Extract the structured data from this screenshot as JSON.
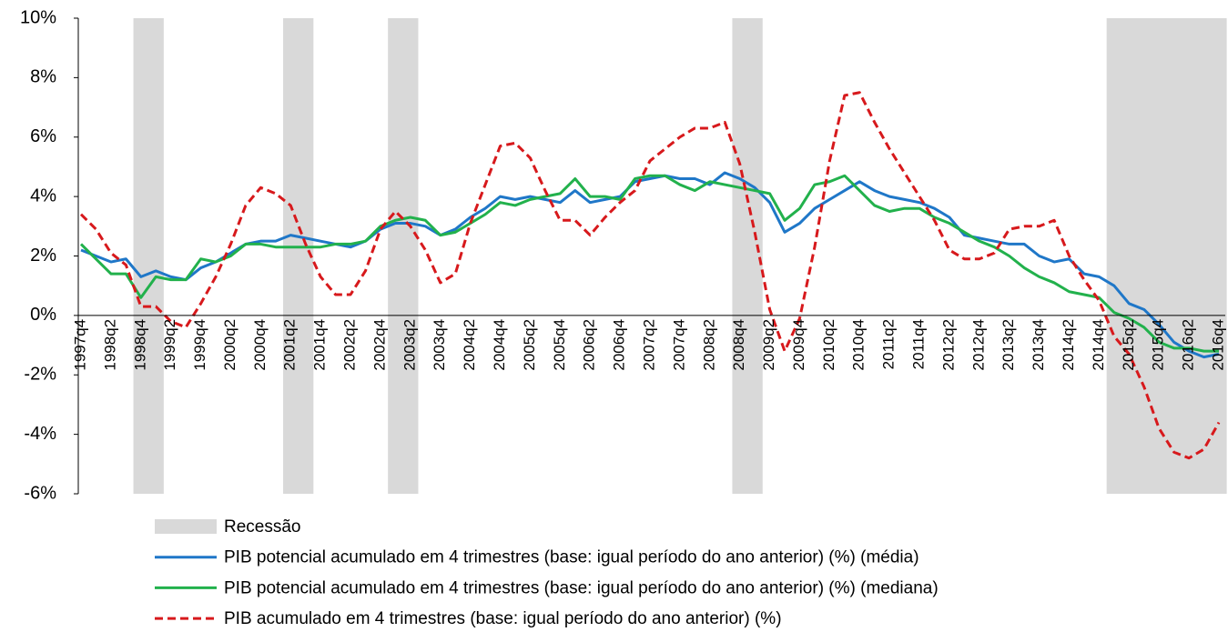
{
  "chart_data": {
    "type": "line",
    "categories": [
      "1997q4",
      null,
      "1998q2",
      null,
      "1998q4",
      null,
      "1999q2",
      null,
      "1999q4",
      null,
      "2000q2",
      null,
      "2000q4",
      null,
      "2001q2",
      null,
      "2001q4",
      null,
      "2002q2",
      null,
      "2002q4",
      null,
      "2003q2",
      null,
      "2003q4",
      null,
      "2004q2",
      null,
      "2004q4",
      null,
      "2005q2",
      null,
      "2005q4",
      null,
      "2006q2",
      null,
      "2006q4",
      null,
      "2007q2",
      null,
      "2007q4",
      null,
      "2008q2",
      null,
      "2008q4",
      null,
      "2009q2",
      null,
      "2009q4",
      null,
      "2010q2",
      null,
      "2010q4",
      null,
      "2011q2",
      null,
      "2011q4",
      null,
      "2012q2",
      null,
      "2012q4",
      null,
      "2013q2",
      null,
      "2013q4",
      null,
      "2014q2",
      null,
      "2014q4",
      null,
      "2015q2",
      null,
      "2015q4",
      null,
      "2016q2",
      null,
      "2016q4"
    ],
    "ylim": [
      -6,
      10
    ],
    "yticks": [
      {
        "value": -6,
        "label": "-6%"
      },
      {
        "value": -4,
        "label": "-4%"
      },
      {
        "value": -2,
        "label": "-2%"
      },
      {
        "value": 0,
        "label": "0%"
      },
      {
        "value": 2,
        "label": "2%"
      },
      {
        "value": 4,
        "label": "4%"
      },
      {
        "value": 6,
        "label": "6%"
      },
      {
        "value": 8,
        "label": "8%"
      },
      {
        "value": 10,
        "label": "10%"
      }
    ],
    "grid": false,
    "series": [
      {
        "name": "Recessão",
        "color": "#d9d9d9",
        "style": "band",
        "values": [
          null,
          null,
          null,
          null,
          10,
          10,
          null,
          null,
          null,
          null,
          null,
          null,
          null,
          null,
          10,
          10,
          null,
          null,
          null,
          null,
          null,
          10,
          10,
          null,
          null,
          null,
          null,
          null,
          null,
          null,
          null,
          null,
          null,
          null,
          null,
          null,
          null,
          null,
          null,
          null,
          null,
          null,
          null,
          null,
          10,
          10,
          null,
          null,
          null,
          null,
          null,
          null,
          null,
          null,
          null,
          null,
          null,
          null,
          null,
          null,
          null,
          null,
          null,
          null,
          null,
          null,
          null,
          null,
          null,
          10,
          10,
          10,
          10,
          10,
          10,
          10,
          10
        ]
      },
      {
        "name": "PIB potencial acumulado em 4 trimestres (base: igual período do ano anterior) (%) (média)",
        "color": "#1f77c8",
        "style": "solid",
        "values": [
          2.2,
          2.0,
          1.8,
          1.9,
          1.3,
          1.5,
          1.3,
          1.2,
          1.6,
          1.8,
          2.1,
          2.4,
          2.5,
          2.5,
          2.7,
          2.6,
          2.5,
          2.4,
          2.3,
          2.5,
          2.9,
          3.1,
          3.1,
          3.0,
          2.7,
          2.9,
          3.3,
          3.6,
          4.0,
          3.9,
          4.0,
          3.9,
          3.8,
          4.2,
          3.8,
          3.9,
          4.0,
          4.5,
          4.6,
          4.7,
          4.6,
          4.6,
          4.4,
          4.8,
          4.6,
          4.3,
          3.8,
          2.8,
          3.1,
          3.6,
          3.9,
          4.2,
          4.5,
          4.2,
          4.0,
          3.9,
          3.8,
          3.6,
          3.3,
          2.7,
          2.6,
          2.5,
          2.4,
          2.4,
          2.0,
          1.8,
          1.9,
          1.4,
          1.3,
          1.0,
          0.4,
          0.2,
          -0.3,
          -0.9,
          -1.2,
          -1.4,
          -1.3
        ]
      },
      {
        "name": "PIB potencial acumulado em 4 trimestres (base: igual período do ano anterior) (%) (mediana)",
        "color": "#22b14c",
        "style": "solid",
        "values": [
          2.4,
          1.9,
          1.4,
          1.4,
          0.6,
          1.3,
          1.2,
          1.2,
          1.9,
          1.8,
          2.0,
          2.4,
          2.4,
          2.3,
          2.3,
          2.3,
          2.3,
          2.4,
          2.4,
          2.5,
          3.0,
          3.2,
          3.3,
          3.2,
          2.7,
          2.8,
          3.1,
          3.4,
          3.8,
          3.7,
          3.9,
          4.0,
          4.1,
          4.6,
          4.0,
          4.0,
          3.9,
          4.6,
          4.7,
          4.7,
          4.4,
          4.2,
          4.5,
          4.4,
          4.3,
          4.2,
          4.1,
          3.2,
          3.6,
          4.4,
          4.5,
          4.7,
          4.2,
          3.7,
          3.5,
          3.6,
          3.6,
          3.3,
          3.1,
          2.8,
          2.5,
          2.3,
          2.0,
          1.6,
          1.3,
          1.1,
          0.8,
          0.7,
          0.6,
          0.1,
          -0.1,
          -0.4,
          -0.9,
          -1.1,
          -1.1,
          -1.2,
          -1.2
        ]
      },
      {
        "name": "PIB acumulado em 4 trimestres (base: igual período do ano anterior) (%)",
        "color": "#d7191c",
        "style": "dashed",
        "values": [
          3.4,
          2.9,
          2.1,
          1.7,
          0.3,
          0.3,
          -0.2,
          -0.4,
          0.4,
          1.3,
          2.4,
          3.7,
          4.3,
          4.1,
          3.7,
          2.4,
          1.3,
          0.7,
          0.7,
          1.5,
          2.9,
          3.5,
          3.0,
          2.2,
          1.1,
          1.4,
          3.1,
          4.4,
          5.7,
          5.8,
          5.3,
          4.2,
          3.2,
          3.2,
          2.7,
          3.3,
          3.8,
          4.2,
          5.2,
          5.6,
          6.0,
          6.3,
          6.3,
          6.5,
          5.1,
          2.8,
          0.2,
          -1.2,
          -0.1,
          2.3,
          5.2,
          7.4,
          7.5,
          6.5,
          5.6,
          4.8,
          4.0,
          3.2,
          2.2,
          1.9,
          1.9,
          2.1,
          2.9,
          3.0,
          3.0,
          3.2,
          2.0,
          1.2,
          0.5,
          -0.7,
          -1.3,
          -2.4,
          -3.8,
          -4.6,
          -4.8,
          -4.5,
          -3.6
        ]
      }
    ]
  }
}
